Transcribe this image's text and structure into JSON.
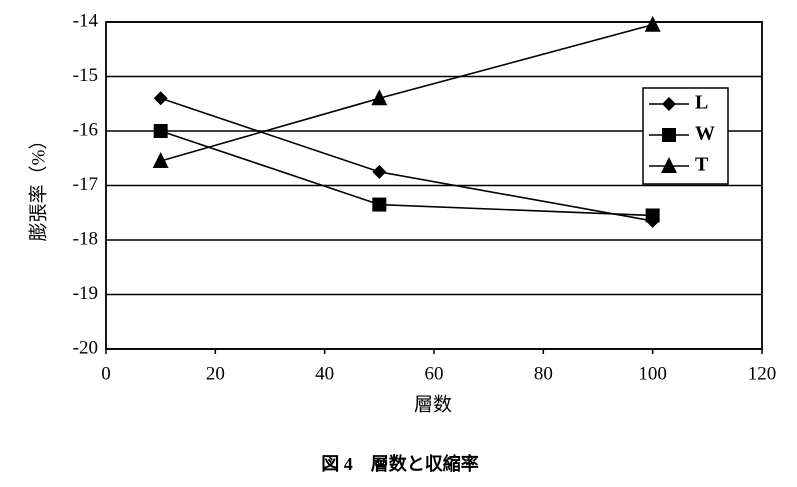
{
  "chart_data": {
    "type": "line",
    "x_label": "層数",
    "y_label": "膨張率（%）",
    "caption": "図 4　層数と収縮率",
    "x": [
      10,
      50,
      100
    ],
    "series": [
      {
        "name": "L",
        "color": "#000000",
        "marker": "diamond",
        "values": [
          -15.4,
          -16.75,
          -17.65
        ]
      },
      {
        "name": "W",
        "color": "#000000",
        "marker": "square",
        "values": [
          -16.0,
          -17.35,
          -17.55
        ]
      },
      {
        "name": "T",
        "color": "#000000",
        "marker": "triangle",
        "values": [
          -16.55,
          -15.4,
          -14.05
        ]
      }
    ],
    "xlim": [
      0,
      120
    ],
    "xticks": [
      0,
      20,
      40,
      60,
      80,
      100,
      120
    ],
    "ylim": [
      -20,
      -14
    ],
    "yticks": [
      -20,
      -19,
      -18,
      -17,
      -16,
      -15,
      -14
    ],
    "grid": true,
    "legend": "upper right"
  }
}
